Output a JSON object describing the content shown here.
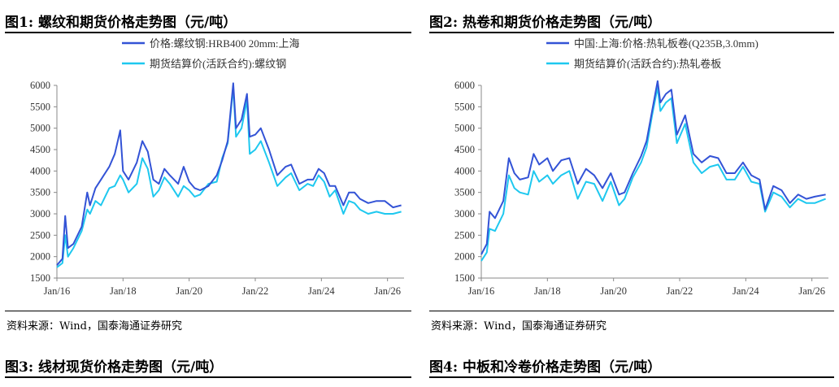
{
  "header": {
    "text": ""
  },
  "figures": [
    {
      "title": "图1:  螺纹和期货价格走势图（元/吨）",
      "source": "资料来源：Wind，国泰海通证券研究"
    },
    {
      "title": "图2:  热卷和期货价格走势图（元/吨）",
      "source": "资料来源：Wind，国泰海通证券研究"
    },
    {
      "title": "图3:  线材现货价格走势图（元/吨）"
    },
    {
      "title": "图4:  中板和冷卷价格走势图（元/吨）"
    }
  ],
  "colors": {
    "spot": "#3353d6",
    "futures": "#1ec8ef"
  },
  "chart_data": [
    {
      "type": "line",
      "title": "",
      "xlabel": "",
      "ylabel": "",
      "ylim": [
        1500,
        6000
      ],
      "yticks": [
        1500,
        2000,
        2500,
        3000,
        3500,
        4000,
        4500,
        5000,
        5500,
        6000
      ],
      "xticks": [
        "Jan/16",
        "Jan/18",
        "Jan/20",
        "Jan/22",
        "Jan/24",
        "Jan/26"
      ],
      "xlim": [
        "2016-01",
        "2026-07"
      ],
      "grid": false,
      "legend": "top-center",
      "series": [
        {
          "name": "价格:螺纹钢:HRB400 20mm:上海",
          "x": [
            "2016-01",
            "2016-03",
            "2016-04",
            "2016-05",
            "2016-07",
            "2016-10",
            "2016-12",
            "2017-01",
            "2017-03",
            "2017-05",
            "2017-08",
            "2017-10",
            "2017-12",
            "2018-01",
            "2018-03",
            "2018-06",
            "2018-08",
            "2018-10",
            "2018-12",
            "2019-02",
            "2019-04",
            "2019-06",
            "2019-09",
            "2019-11",
            "2020-01",
            "2020-03",
            "2020-05",
            "2020-08",
            "2020-11",
            "2021-01",
            "2021-03",
            "2021-05",
            "2021-06",
            "2021-08",
            "2021-10",
            "2021-11",
            "2022-01",
            "2022-03",
            "2022-06",
            "2022-09",
            "2022-12",
            "2023-02",
            "2023-05",
            "2023-08",
            "2023-10",
            "2023-12",
            "2024-02",
            "2024-04",
            "2024-06",
            "2024-09",
            "2024-11",
            "2025-01",
            "2025-03",
            "2025-06",
            "2025-09",
            "2025-12",
            "2026-03",
            "2026-06"
          ],
          "y": [
            1800,
            1950,
            2950,
            2200,
            2300,
            2700,
            3500,
            3200,
            3600,
            3800,
            4100,
            4400,
            4950,
            4000,
            3800,
            4200,
            4700,
            4450,
            3800,
            3700,
            4050,
            3900,
            3700,
            4100,
            3750,
            3600,
            3550,
            3650,
            3900,
            4250,
            4700,
            6050,
            5000,
            5200,
            5800,
            4800,
            4850,
            5000,
            4500,
            3900,
            4100,
            4150,
            3700,
            3800,
            3800,
            4050,
            3950,
            3650,
            3650,
            3200,
            3500,
            3500,
            3350,
            3250,
            3300,
            3300,
            3150,
            3200
          ]
        },
        {
          "name": "期货结算价(活跃合约):螺纹钢",
          "x": [
            "2016-01",
            "2016-03",
            "2016-04",
            "2016-05",
            "2016-07",
            "2016-10",
            "2016-12",
            "2017-01",
            "2017-03",
            "2017-05",
            "2017-08",
            "2017-10",
            "2017-12",
            "2018-01",
            "2018-03",
            "2018-06",
            "2018-08",
            "2018-10",
            "2018-12",
            "2019-02",
            "2019-04",
            "2019-06",
            "2019-09",
            "2019-11",
            "2020-01",
            "2020-03",
            "2020-05",
            "2020-08",
            "2020-11",
            "2021-01",
            "2021-03",
            "2021-05",
            "2021-06",
            "2021-08",
            "2021-10",
            "2021-11",
            "2022-01",
            "2022-03",
            "2022-06",
            "2022-09",
            "2022-12",
            "2023-02",
            "2023-05",
            "2023-08",
            "2023-10",
            "2023-12",
            "2024-02",
            "2024-04",
            "2024-06",
            "2024-09",
            "2024-11",
            "2025-01",
            "2025-03",
            "2025-06",
            "2025-09",
            "2025-12",
            "2026-03",
            "2026-06"
          ],
          "y": [
            1750,
            1850,
            2500,
            2000,
            2200,
            2600,
            3100,
            3000,
            3300,
            3200,
            3600,
            3650,
            3900,
            3800,
            3500,
            3700,
            4300,
            4050,
            3400,
            3550,
            3850,
            3700,
            3400,
            3650,
            3550,
            3400,
            3450,
            3700,
            3750,
            4300,
            4650,
            5950,
            4800,
            5000,
            5650,
            4400,
            4500,
            4700,
            4200,
            3650,
            3850,
            3950,
            3550,
            3700,
            3650,
            3900,
            3750,
            3400,
            3550,
            3000,
            3300,
            3250,
            3100,
            3000,
            3050,
            3000,
            3000,
            3050
          ]
        }
      ]
    },
    {
      "type": "line",
      "title": "",
      "xlabel": "",
      "ylabel": "",
      "ylim": [
        1500,
        6000
      ],
      "yticks": [
        1500,
        2000,
        2500,
        3000,
        3500,
        4000,
        4500,
        5000,
        5500,
        6000
      ],
      "xticks": [
        "Jan/16",
        "Jan/18",
        "Jan/20",
        "Jan/22",
        "Jan/24",
        "Jan/26"
      ],
      "xlim": [
        "2016-01",
        "2026-07"
      ],
      "grid": false,
      "legend": "top-center",
      "series": [
        {
          "name": "中国:上海:价格:热轧板卷(Q235B,3.0mm)",
          "x": [
            "2016-01",
            "2016-03",
            "2016-04",
            "2016-06",
            "2016-09",
            "2016-11",
            "2017-01",
            "2017-03",
            "2017-06",
            "2017-08",
            "2017-10",
            "2018-01",
            "2018-03",
            "2018-06",
            "2018-09",
            "2018-12",
            "2019-03",
            "2019-06",
            "2019-09",
            "2019-12",
            "2020-03",
            "2020-05",
            "2020-08",
            "2020-11",
            "2021-01",
            "2021-03",
            "2021-05",
            "2021-06",
            "2021-08",
            "2021-10",
            "2021-12",
            "2022-03",
            "2022-06",
            "2022-09",
            "2022-12",
            "2023-03",
            "2023-06",
            "2023-09",
            "2023-12",
            "2024-03",
            "2024-06",
            "2024-08",
            "2024-11",
            "2025-02",
            "2025-05",
            "2025-08",
            "2025-11",
            "2026-02",
            "2026-06"
          ],
          "y": [
            2050,
            2300,
            3050,
            2900,
            3300,
            4300,
            3950,
            3800,
            3850,
            4400,
            4150,
            4300,
            4000,
            4250,
            4300,
            3700,
            4050,
            3900,
            3600,
            3950,
            3450,
            3500,
            3950,
            4350,
            4700,
            5400,
            6100,
            5600,
            5800,
            5900,
            4850,
            5300,
            4400,
            4200,
            4350,
            4300,
            3950,
            3950,
            4200,
            3900,
            3800,
            3100,
            3650,
            3550,
            3250,
            3450,
            3350,
            3400,
            3450
          ]
        },
        {
          "name": "期货结算价(活跃合约):热轧卷板",
          "x": [
            "2016-01",
            "2016-03",
            "2016-04",
            "2016-06",
            "2016-09",
            "2016-11",
            "2017-01",
            "2017-03",
            "2017-06",
            "2017-08",
            "2017-10",
            "2018-01",
            "2018-03",
            "2018-06",
            "2018-09",
            "2018-12",
            "2019-03",
            "2019-06",
            "2019-09",
            "2019-12",
            "2020-03",
            "2020-05",
            "2020-08",
            "2020-11",
            "2021-01",
            "2021-03",
            "2021-05",
            "2021-06",
            "2021-08",
            "2021-10",
            "2021-12",
            "2022-03",
            "2022-06",
            "2022-09",
            "2022-12",
            "2023-03",
            "2023-06",
            "2023-09",
            "2023-12",
            "2024-03",
            "2024-06",
            "2024-08",
            "2024-11",
            "2025-02",
            "2025-05",
            "2025-08",
            "2025-11",
            "2026-02",
            "2026-06"
          ],
          "y": [
            1900,
            2100,
            2650,
            2600,
            3000,
            3900,
            3600,
            3500,
            3450,
            4000,
            3750,
            3900,
            3700,
            3900,
            4000,
            3350,
            3750,
            3700,
            3300,
            3750,
            3200,
            3350,
            3850,
            4200,
            4550,
            5300,
            5950,
            5400,
            5600,
            5700,
            4650,
            5100,
            4200,
            3950,
            4100,
            4150,
            3800,
            3800,
            4100,
            3750,
            3700,
            3050,
            3500,
            3400,
            3150,
            3350,
            3250,
            3250,
            3350
          ]
        }
      ]
    }
  ]
}
